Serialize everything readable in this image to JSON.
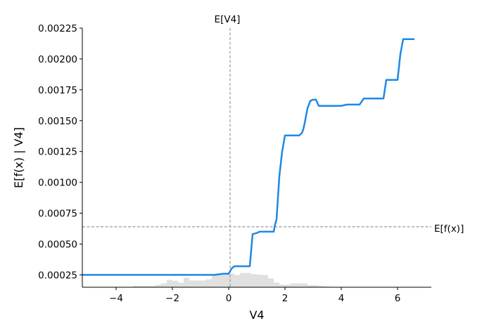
{
  "chart_data": {
    "type": "line",
    "xlabel": "V4",
    "ylabel": "E[f(x) | V4]",
    "xlim": [
      -5.2,
      7.2
    ],
    "ylim": [
      0.00015,
      0.00225
    ],
    "x_ticks": [
      -4,
      -2,
      0,
      2,
      4,
      6
    ],
    "x_tick_labels": [
      "−4",
      "−2",
      "0",
      "2",
      "4",
      "6"
    ],
    "y_ticks": [
      0.00025,
      0.0005,
      0.00075,
      0.001,
      0.00125,
      0.0015,
      0.00175,
      0.002,
      0.00225
    ],
    "y_tick_labels": [
      "0.00025",
      "0.00050",
      "0.00075",
      "0.00100",
      "0.00125",
      "0.00150",
      "0.00175",
      "0.00200",
      "0.00225"
    ],
    "grid": false,
    "colors": {
      "line": "#1e88e5",
      "histogram": "#e0e0e0",
      "reference": "#999999"
    },
    "reference_lines": {
      "vertical": {
        "label": "E[V4]",
        "x": 0.05
      },
      "horizontal": {
        "label": "E[f(x)]",
        "y": 0.00064
      }
    },
    "series": [
      {
        "x": [
          -5.2,
          -4,
          -3,
          -2,
          -1.5,
          -1,
          -0.5,
          -0.2,
          0.0,
          0.1,
          0.2,
          0.4,
          0.6,
          0.75,
          0.85,
          1.0,
          1.1,
          1.3,
          1.5,
          1.6,
          1.65,
          1.7,
          1.8,
          1.9,
          2.0,
          2.2,
          2.5,
          2.6,
          2.65,
          2.7,
          2.8,
          2.9,
          3.0,
          3.1,
          3.2,
          3.5,
          4.0,
          4.2,
          4.5,
          4.65,
          4.8,
          5.0,
          5.5,
          5.6,
          5.8,
          6.0,
          6.1,
          6.2,
          6.6
        ],
        "y": [
          0.00025,
          0.00025,
          0.00025,
          0.00025,
          0.00025,
          0.00025,
          0.00025,
          0.00026,
          0.00026,
          0.0003,
          0.00032,
          0.00032,
          0.00032,
          0.00032,
          0.00058,
          0.00059,
          0.0006,
          0.0006,
          0.0006,
          0.0006,
          0.00066,
          0.0007,
          0.00105,
          0.00125,
          0.00138,
          0.00138,
          0.00138,
          0.0014,
          0.00143,
          0.00148,
          0.0016,
          0.00166,
          0.00167,
          0.00167,
          0.00162,
          0.00162,
          0.00162,
          0.00163,
          0.00163,
          0.00163,
          0.00168,
          0.00168,
          0.00168,
          0.00183,
          0.00183,
          0.00183,
          0.00204,
          0.00216,
          0.00216
        ]
      }
    ],
    "histogram": {
      "bins": [
        -3.4,
        -3.0,
        -2.6,
        -2.4,
        -2.2,
        -2.0,
        -1.8,
        -1.6,
        -1.4,
        -1.2,
        -1.0,
        -0.8,
        -0.6,
        -0.4,
        -0.2,
        0.0,
        0.2,
        0.4,
        0.6,
        0.8,
        1.0,
        1.2,
        1.4,
        1.6,
        1.8,
        2.0,
        2.2,
        2.4,
        2.6,
        2.8,
        3.0,
        3.2,
        3.4,
        3.6
      ],
      "heights": [
        0.06,
        0.06,
        0.12,
        0.18,
        0.35,
        0.3,
        0.22,
        0.45,
        0.32,
        0.32,
        0.32,
        0.38,
        0.6,
        0.6,
        0.62,
        0.65,
        0.58,
        0.68,
        0.68,
        0.62,
        0.6,
        0.58,
        0.42,
        0.22,
        0.12,
        0.12,
        0.18,
        0.18,
        0.18,
        0.1,
        0.1,
        0.06,
        0.03
      ]
    }
  }
}
